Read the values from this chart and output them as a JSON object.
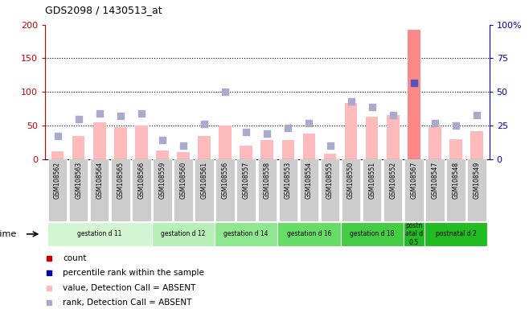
{
  "title": "GDS2098 / 1430513_at",
  "samples": [
    "GSM108562",
    "GSM108563",
    "GSM108564",
    "GSM108565",
    "GSM108566",
    "GSM108559",
    "GSM108560",
    "GSM108561",
    "GSM108556",
    "GSM108557",
    "GSM108558",
    "GSM108553",
    "GSM108554",
    "GSM108555",
    "GSM108550",
    "GSM108551",
    "GSM108552",
    "GSM108567",
    "GSM108547",
    "GSM108548",
    "GSM108549"
  ],
  "values": [
    12,
    35,
    55,
    48,
    50,
    13,
    10,
    35,
    50,
    20,
    28,
    28,
    38,
    8,
    83,
    63,
    65,
    192,
    48,
    30,
    42
  ],
  "ranks": [
    17,
    30,
    34,
    32,
    34,
    14,
    10,
    26,
    50,
    20,
    19,
    23,
    27,
    10,
    43,
    39,
    33,
    57,
    27,
    25,
    33
  ],
  "detection": [
    "A",
    "A",
    "A",
    "A",
    "A",
    "A",
    "A",
    "A",
    "A",
    "A",
    "A",
    "A",
    "A",
    "A",
    "A",
    "A",
    "A",
    "P",
    "A",
    "A",
    "A"
  ],
  "groups": [
    {
      "label": "gestation d 11",
      "start": 0,
      "end": 5,
      "color": "#d4f5d4"
    },
    {
      "label": "gestation d 12",
      "start": 5,
      "end": 8,
      "color": "#b8f0b8"
    },
    {
      "label": "gestation d 14",
      "start": 8,
      "end": 11,
      "color": "#8fe88f"
    },
    {
      "label": "gestation d 16",
      "start": 11,
      "end": 14,
      "color": "#66dd66"
    },
    {
      "label": "gestation d 18",
      "start": 14,
      "end": 17,
      "color": "#44cc44"
    },
    {
      "label": "postn\natal d\n0.5",
      "start": 17,
      "end": 18,
      "color": "#22bb22"
    },
    {
      "label": "postnatal d 2",
      "start": 18,
      "end": 21,
      "color": "#22bb22"
    }
  ],
  "ylim_left": [
    0,
    200
  ],
  "ylim_right": [
    0,
    100
  ],
  "left_ticks": [
    0,
    50,
    100,
    150,
    200
  ],
  "right_ticks": [
    0,
    25,
    50,
    75,
    100
  ],
  "right_tick_labels": [
    "0",
    "25",
    "50",
    "75",
    "100%"
  ],
  "bar_color_present": "#ff8888",
  "bar_color_absent": "#ffbbbb",
  "dot_color_present": "#5555bb",
  "dot_color_absent": "#aaaacc",
  "background_color": "#ffffff",
  "plot_bg_color": "#ffffff",
  "sample_bg_color": "#cccccc",
  "grid_line_color": "#000000",
  "axis_label_color_left": "#cc0000",
  "axis_label_color_right": "#0000cc"
}
